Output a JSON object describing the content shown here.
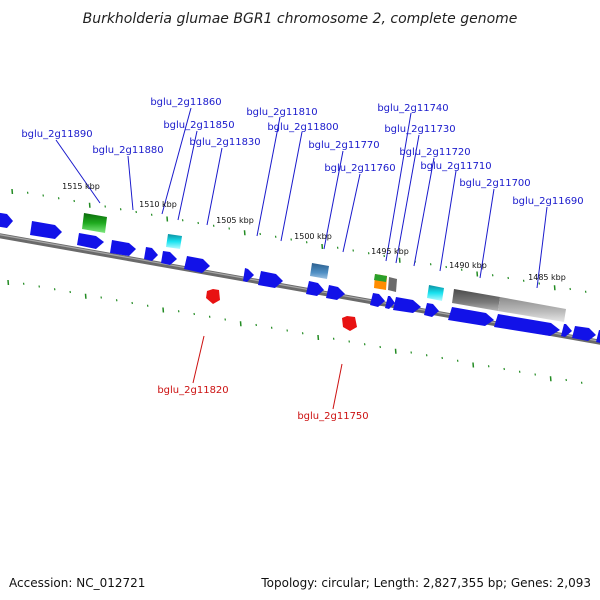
{
  "title": "Burkholderia glumae BGR1 chromosome 2, complete genome",
  "footer": {
    "accession": "Accession: NC_012721",
    "summary": "Topology: circular; Length: 2,827,355 bp; Genes: 2,093"
  },
  "colors": {
    "forward_gene": "#1212e8",
    "reverse_gene": "#e81212",
    "label_forward": "#1a1acc",
    "label_reverse": "#cc1111",
    "backbone": "#808080",
    "tick": "#228b22"
  },
  "scale_labels": [
    "1515 kbp",
    "1510 kbp",
    "1505 kbp",
    "1500 kbp",
    "1495 kbp",
    "1490 kbp",
    "1485 kbp"
  ],
  "genes_forward": [
    "bglu_2g11890",
    "bglu_2g11880",
    "bglu_2g11860",
    "bglu_2g11850",
    "bglu_2g11830",
    "bglu_2g11810",
    "bglu_2g11800",
    "bglu_2g11770",
    "bglu_2g11760",
    "bglu_2g11740",
    "bglu_2g11730",
    "bglu_2g11720",
    "bglu_2g11710",
    "bglu_2g11700",
    "bglu_2g11690"
  ],
  "genes_reverse": [
    "bglu_2g11820",
    "bglu_2g11750"
  ]
}
